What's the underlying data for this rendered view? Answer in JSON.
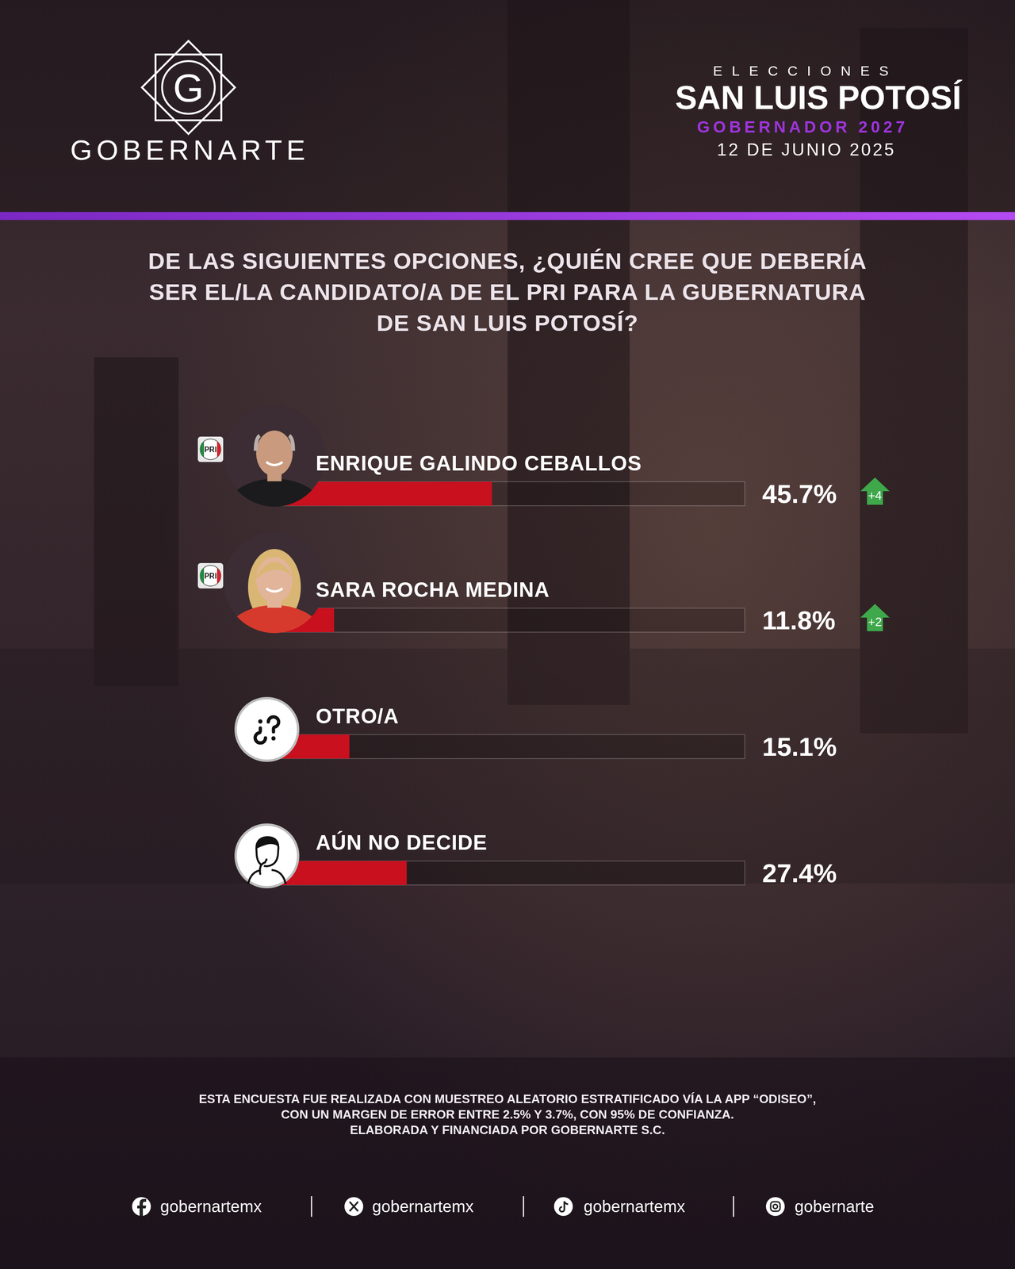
{
  "header": {
    "logo_letter": "G",
    "brand": "GOBERNARTE",
    "kicker": "ELECCIONES",
    "state": "SAN LUIS POTOSÍ",
    "race": "GOBERNADOR 2027",
    "date": "12 DE JUNIO 2025"
  },
  "chart_data": {
    "type": "bar",
    "orientation": "horizontal",
    "title": "DE LAS SIGUIENTES OPCIONES, ¿QUIÉN CREE QUE DEBERÍA SER EL/LA CANDIDATO/A DE EL PRI PARA LA GUBERNATURA DE SAN LUIS POTOSÍ?",
    "categories": [
      "ENRIQUE GALINDO CEBALLOS",
      "SARA ROCHA MEDINA",
      "OTRO/A",
      "AÚN NO DECIDE"
    ],
    "values": [
      45.7,
      11.8,
      15.1,
      27.4
    ],
    "value_labels": [
      "45.7%",
      "11.8%",
      "15.1%",
      "27.4%"
    ],
    "changes": [
      4,
      2,
      null,
      null
    ],
    "change_labels": [
      "+4",
      "+2",
      null,
      null
    ],
    "party": [
      "PRI",
      "PRI",
      null,
      null
    ],
    "color": "#c8101e",
    "xlim": [
      0,
      100
    ],
    "data_labels": true,
    "tick_labels": false
  },
  "footer": {
    "notes": [
      "ESTA ENCUESTA FUE REALIZADA CON MUESTREO ALEATORIO ESTRATIFICADO VÍA LA APP “ODISEO”,",
      "CON UN MARGEN DE ERROR ENTRE 2.5% Y 3.7%, CON 95% DE CONFIANZA.",
      "ELABORADA Y FINANCIADA POR GOBERNARTE S.C."
    ],
    "social": [
      "gobernartemx",
      "gobernartemx",
      "gobernartemx",
      "gobernarte"
    ]
  }
}
